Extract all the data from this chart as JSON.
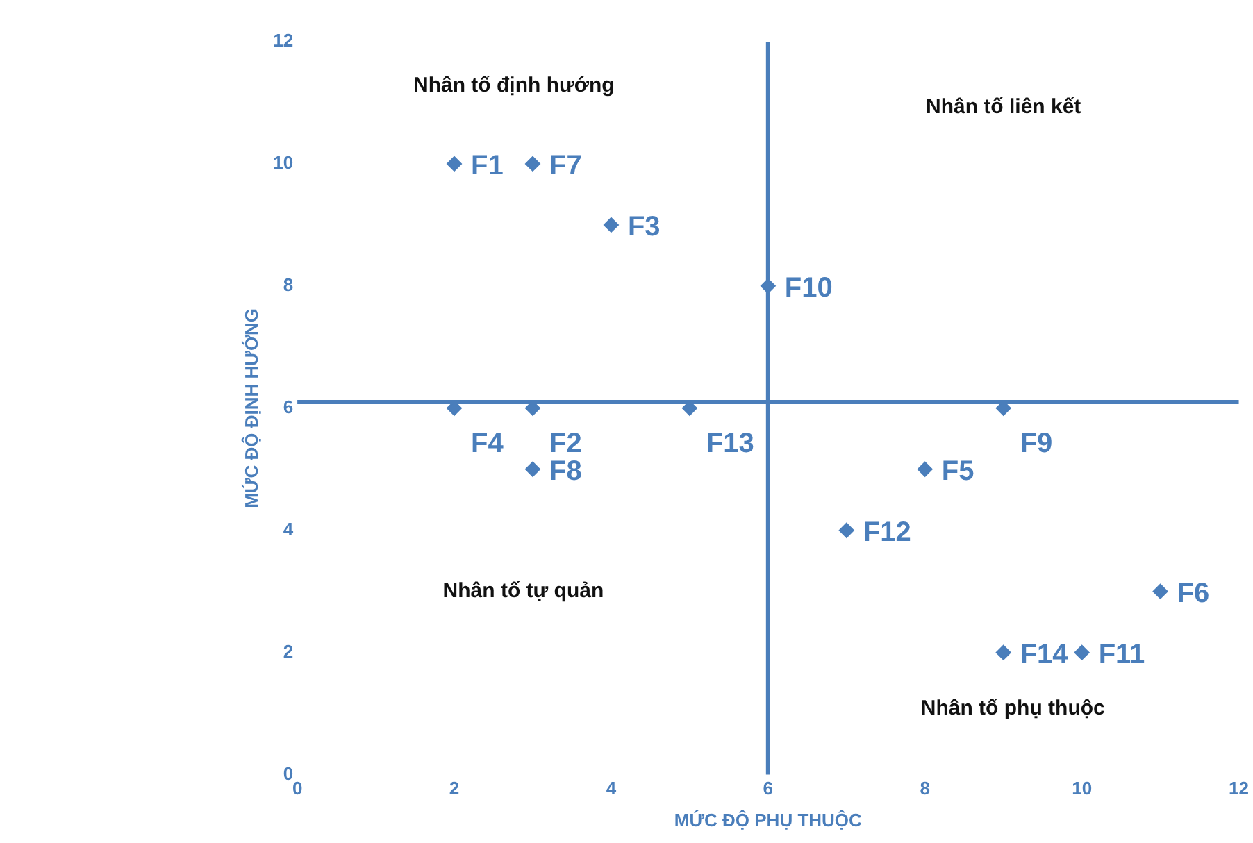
{
  "chart_data": {
    "type": "scatter",
    "xlabel": "MỨC ĐỘ PHỤ THUỘC",
    "ylabel": "MỨC ĐỘ ĐỊNH HƯỚNG",
    "x": [
      2,
      3,
      4,
      6,
      2,
      3,
      5,
      3,
      9,
      8,
      7,
      11,
      9,
      10
    ],
    "series": [
      {
        "color": "#4a7ebb",
        "values": [
          10,
          10,
          9,
          8,
          6,
          6,
          6,
          5,
          6,
          5,
          4,
          3,
          2,
          2
        ]
      }
    ],
    "xlim": [
      0,
      12
    ],
    "ylim": [
      0,
      12
    ],
    "xticks": [
      0,
      2,
      4,
      6,
      8,
      10,
      12
    ],
    "yticks": [
      0,
      2,
      4,
      6,
      8,
      10,
      12
    ],
    "grid": false,
    "legend": false,
    "marker": "diamond",
    "ref_lines": [
      {
        "axis": "x",
        "value": 6,
        "color": "#4a7ebb"
      },
      {
        "axis": "y",
        "value": 6.1,
        "color": "#4a7ebb"
      }
    ],
    "annotations": [
      {
        "text": "F1",
        "x": 2,
        "y": 10
      },
      {
        "text": "F7",
        "x": 3,
        "y": 10
      },
      {
        "text": "F3",
        "x": 4,
        "y": 9
      },
      {
        "text": "F10",
        "x": 6,
        "y": 8
      },
      {
        "text": "F4",
        "x": 2,
        "y": 6
      },
      {
        "text": "F2",
        "x": 3,
        "y": 6
      },
      {
        "text": "F13",
        "x": 5,
        "y": 6
      },
      {
        "text": "F8",
        "x": 3,
        "y": 5
      },
      {
        "text": "F9",
        "x": 9,
        "y": 6
      },
      {
        "text": "F5",
        "x": 8,
        "y": 5
      },
      {
        "text": "F12",
        "x": 7,
        "y": 4
      },
      {
        "text": "F6",
        "x": 11,
        "y": 3
      },
      {
        "text": "F14",
        "x": 9,
        "y": 2
      },
      {
        "text": "F11",
        "x": 10,
        "y": 2
      },
      "Nhân tố định hướng",
      "Nhân tố liên kết",
      "Nhân tố tự quản",
      "Nhân tố phụ thuộc"
    ]
  }
}
